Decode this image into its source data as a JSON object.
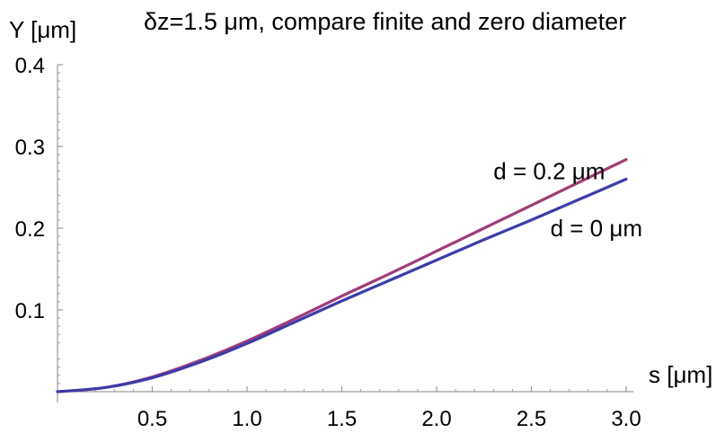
{
  "chart_data": {
    "type": "line",
    "title": "δz=1.5 μm, compare finite and zero diameter",
    "xlabel": "s [μm]",
    "ylabel": "Y [μm]",
    "xlim": [
      0,
      3.0
    ],
    "ylim": [
      0,
      0.4
    ],
    "x_ticks": [
      0.5,
      1.0,
      1.5,
      2.0,
      2.5,
      3.0
    ],
    "x_tick_labels": [
      "0.5",
      "1.0",
      "1.5",
      "2.0",
      "2.5",
      "3.0"
    ],
    "y_ticks": [
      0.1,
      0.2,
      0.3,
      0.4
    ],
    "y_tick_labels": [
      "0.1",
      "0.2",
      "0.3",
      "0.4"
    ],
    "grid": false,
    "legend": "none",
    "series": [
      {
        "name": "d = 0.2 μm",
        "color": "#a03c78",
        "x": [
          0,
          0.25,
          0.5,
          0.75,
          1.0,
          1.25,
          1.5,
          1.75,
          2.0,
          2.25,
          2.5,
          2.75,
          3.0
        ],
        "y": [
          0,
          0.005,
          0.018,
          0.038,
          0.062,
          0.089,
          0.117,
          0.144,
          0.172,
          0.2,
          0.228,
          0.256,
          0.284
        ]
      },
      {
        "name": "d = 0 μm",
        "color": "#3c3ca8",
        "x": [
          0,
          0.25,
          0.5,
          0.75,
          1.0,
          1.25,
          1.5,
          1.75,
          2.0,
          2.25,
          2.5,
          2.75,
          3.0
        ],
        "y": [
          0,
          0.005,
          0.017,
          0.036,
          0.059,
          0.085,
          0.111,
          0.136,
          0.161,
          0.186,
          0.21,
          0.235,
          0.26
        ]
      }
    ],
    "annotations": [
      {
        "text": "d = 0.2 μm",
        "x": 2.3,
        "y": 0.26
      },
      {
        "text": "d = 0 μm",
        "x": 2.6,
        "y": 0.19
      }
    ]
  }
}
